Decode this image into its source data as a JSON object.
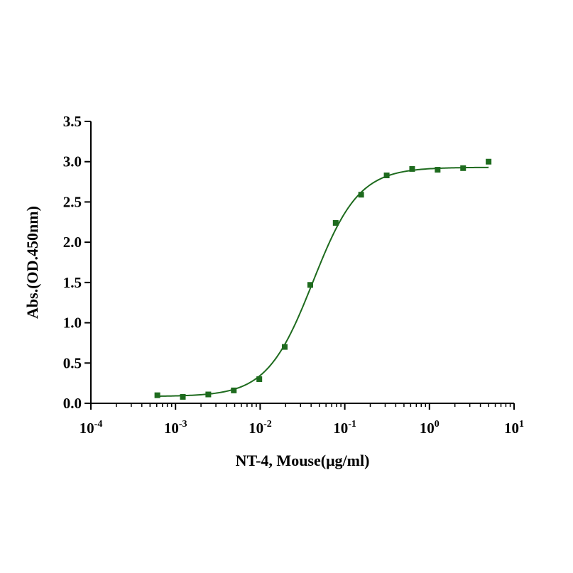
{
  "chart_data": {
    "type": "scatter",
    "xlabel": "NT-4, Mouse(μg/ml)",
    "ylabel": "Abs.(OD.450nm)",
    "xscale": "log",
    "xlim": [
      0.0001,
      10
    ],
    "ylim": [
      0,
      3.5
    ],
    "x_ticks": [
      {
        "base": "10",
        "exp": "-4"
      },
      {
        "base": "10",
        "exp": "-3"
      },
      {
        "base": "10",
        "exp": "-2"
      },
      {
        "base": "10",
        "exp": "-1"
      },
      {
        "base": "10",
        "exp": "0"
      },
      {
        "base": "10",
        "exp": "1"
      }
    ],
    "y_ticks": [
      "0.0",
      "0.5",
      "1.0",
      "1.5",
      "2.0",
      "2.5",
      "3.0",
      "3.5"
    ],
    "grid": false,
    "series": [
      {
        "color": "#1e6b1e",
        "marker": "square",
        "x": [
          0.00061,
          0.00122,
          0.00244,
          0.00488,
          0.00977,
          0.0195,
          0.0391,
          0.0781,
          0.156,
          0.3125,
          0.625,
          1.25,
          2.5,
          5
        ],
        "y": [
          0.1,
          0.08,
          0.11,
          0.16,
          0.3,
          0.7,
          1.47,
          2.24,
          2.59,
          2.83,
          2.91,
          2.9,
          2.92,
          3.0
        ]
      }
    ],
    "fit_curve": {
      "model": "4PL",
      "color": "#1e6b1e",
      "bottom": 0.085,
      "top": 2.93,
      "ec50": 0.042,
      "hill": 1.6
    }
  }
}
